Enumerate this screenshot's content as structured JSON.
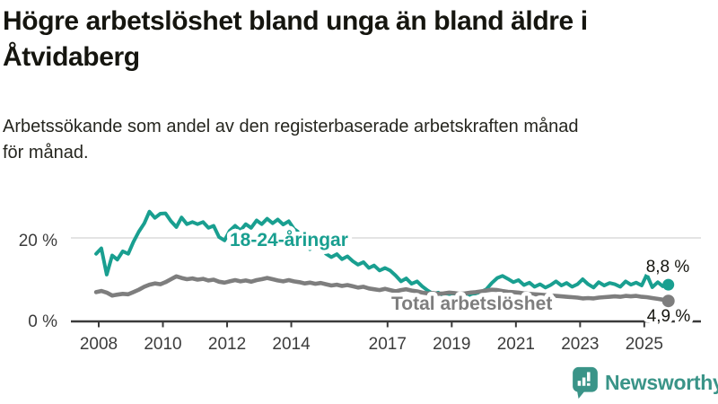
{
  "header": {
    "title_lines": [
      "Högre arbetslöshet bland unga än bland äldre i",
      "Åtvidaberg"
    ],
    "subtitle_lines": [
      "Arbetssökande som andel av den registerbaserade arbetskraften månad",
      "för månad."
    ]
  },
  "chart_data": {
    "type": "line",
    "title": "Högre arbetslöshet bland unga än bland äldre i Åtvidaberg",
    "subtitle": "Arbetssökande som andel av den registerbaserade arbetskraften månad för månad.",
    "unit": "%",
    "grid": "horizontal only at 20 %",
    "legend_position": "inline labels on lines",
    "x_axis": {
      "ticks": [
        2008,
        2010,
        2012,
        2014,
        2017,
        2019,
        2021,
        2023,
        2025
      ],
      "range": [
        2007.9,
        2025.9
      ]
    },
    "y_axis": {
      "gridlines": [
        20
      ],
      "ticks": [
        {
          "value": 20,
          "label": "20 %"
        },
        {
          "value": 0,
          "label": "0 %"
        }
      ],
      "range": [
        0,
        28
      ]
    },
    "series": [
      {
        "name": "18-24-åringar",
        "color": "#199f90",
        "end_label": "8,8 %",
        "end_value": 8.8,
        "points": [
          [
            2007.92,
            16.2
          ],
          [
            2008.08,
            17.5
          ],
          [
            2008.25,
            11.2
          ],
          [
            2008.42,
            15.8
          ],
          [
            2008.58,
            14.8
          ],
          [
            2008.75,
            16.8
          ],
          [
            2008.92,
            16.2
          ],
          [
            2009.08,
            19.0
          ],
          [
            2009.25,
            21.5
          ],
          [
            2009.42,
            23.5
          ],
          [
            2009.58,
            26.3
          ],
          [
            2009.75,
            24.8
          ],
          [
            2009.92,
            25.8
          ],
          [
            2010.08,
            25.9
          ],
          [
            2010.25,
            24.0
          ],
          [
            2010.42,
            22.6
          ],
          [
            2010.58,
            24.9
          ],
          [
            2010.75,
            23.3
          ],
          [
            2010.92,
            23.8
          ],
          [
            2011.08,
            23.3
          ],
          [
            2011.25,
            23.8
          ],
          [
            2011.42,
            22.4
          ],
          [
            2011.58,
            22.9
          ],
          [
            2011.75,
            20.2
          ],
          [
            2011.92,
            19.4
          ],
          [
            2012.08,
            21.7
          ],
          [
            2012.25,
            22.9
          ],
          [
            2012.42,
            21.8
          ],
          [
            2012.58,
            23.3
          ],
          [
            2012.75,
            22.4
          ],
          [
            2012.92,
            24.2
          ],
          [
            2013.08,
            23.3
          ],
          [
            2013.25,
            24.6
          ],
          [
            2013.42,
            23.5
          ],
          [
            2013.58,
            24.4
          ],
          [
            2013.75,
            23.2
          ],
          [
            2013.92,
            24.0
          ],
          [
            2014.08,
            22.2
          ],
          [
            2014.25,
            21.2
          ],
          [
            2014.42,
            19.8
          ],
          [
            2014.58,
            17.3
          ],
          [
            2014.75,
            18.9
          ],
          [
            2014.92,
            18.3
          ],
          [
            2015.08,
            16.2
          ],
          [
            2015.25,
            15.4
          ],
          [
            2015.42,
            16.1
          ],
          [
            2015.58,
            14.9
          ],
          [
            2015.75,
            15.6
          ],
          [
            2015.92,
            14.4
          ],
          [
            2016.08,
            13.6
          ],
          [
            2016.25,
            14.2
          ],
          [
            2016.42,
            12.8
          ],
          [
            2016.58,
            13.4
          ],
          [
            2016.75,
            12.2
          ],
          [
            2016.92,
            12.8
          ],
          [
            2017.08,
            12.2
          ],
          [
            2017.25,
            11.0
          ],
          [
            2017.42,
            9.6
          ],
          [
            2017.58,
            10.3
          ],
          [
            2017.75,
            9.0
          ],
          [
            2017.92,
            9.6
          ],
          [
            2018.08,
            8.4
          ],
          [
            2018.25,
            7.4
          ],
          [
            2018.42,
            6.6
          ],
          [
            2018.58,
            6.9
          ],
          [
            2018.75,
            6.2
          ],
          [
            2018.92,
            6.6
          ],
          [
            2019.08,
            6.1
          ],
          [
            2019.25,
            6.4
          ],
          [
            2019.42,
            5.9
          ],
          [
            2019.58,
            6.3
          ],
          [
            2019.75,
            6.7
          ],
          [
            2019.92,
            7.1
          ],
          [
            2020.08,
            7.7
          ],
          [
            2020.25,
            9.2
          ],
          [
            2020.42,
            10.4
          ],
          [
            2020.58,
            10.9
          ],
          [
            2020.75,
            10.2
          ],
          [
            2020.92,
            9.4
          ],
          [
            2021.08,
            9.9
          ],
          [
            2021.25,
            8.7
          ],
          [
            2021.42,
            9.3
          ],
          [
            2021.58,
            8.3
          ],
          [
            2021.75,
            8.9
          ],
          [
            2021.92,
            8.1
          ],
          [
            2022.08,
            8.7
          ],
          [
            2022.25,
            9.6
          ],
          [
            2022.42,
            8.6
          ],
          [
            2022.58,
            9.2
          ],
          [
            2022.75,
            8.3
          ],
          [
            2022.92,
            8.9
          ],
          [
            2023.08,
            10.1
          ],
          [
            2023.25,
            8.9
          ],
          [
            2023.42,
            8.1
          ],
          [
            2023.58,
            9.4
          ],
          [
            2023.75,
            8.6
          ],
          [
            2023.92,
            9.2
          ],
          [
            2024.08,
            8.9
          ],
          [
            2024.25,
            8.3
          ],
          [
            2024.42,
            9.6
          ],
          [
            2024.58,
            8.8
          ],
          [
            2024.75,
            9.3
          ],
          [
            2024.92,
            8.6
          ],
          [
            2025.08,
            11.2
          ],
          [
            2025.25,
            8.2
          ],
          [
            2025.42,
            9.4
          ],
          [
            2025.58,
            8.4
          ],
          [
            2025.75,
            8.8
          ]
        ]
      },
      {
        "name": "Total arbetslöshet",
        "color": "#7e7e7e",
        "end_label": "4,9 %",
        "end_value": 4.9,
        "points": [
          [
            2007.92,
            7.0
          ],
          [
            2008.08,
            7.3
          ],
          [
            2008.25,
            6.9
          ],
          [
            2008.42,
            6.2
          ],
          [
            2008.58,
            6.4
          ],
          [
            2008.75,
            6.6
          ],
          [
            2008.92,
            6.5
          ],
          [
            2009.08,
            7.0
          ],
          [
            2009.25,
            7.6
          ],
          [
            2009.42,
            8.3
          ],
          [
            2009.58,
            8.8
          ],
          [
            2009.75,
            9.1
          ],
          [
            2009.92,
            8.9
          ],
          [
            2010.08,
            9.4
          ],
          [
            2010.25,
            10.1
          ],
          [
            2010.42,
            10.8
          ],
          [
            2010.58,
            10.4
          ],
          [
            2010.75,
            10.1
          ],
          [
            2010.92,
            10.3
          ],
          [
            2011.08,
            10.0
          ],
          [
            2011.25,
            10.2
          ],
          [
            2011.42,
            9.8
          ],
          [
            2011.58,
            10.0
          ],
          [
            2011.75,
            9.5
          ],
          [
            2011.92,
            9.3
          ],
          [
            2012.08,
            9.6
          ],
          [
            2012.25,
            9.9
          ],
          [
            2012.42,
            9.6
          ],
          [
            2012.58,
            9.8
          ],
          [
            2012.75,
            9.5
          ],
          [
            2012.92,
            9.9
          ],
          [
            2013.08,
            10.1
          ],
          [
            2013.25,
            10.4
          ],
          [
            2013.42,
            10.1
          ],
          [
            2013.58,
            9.8
          ],
          [
            2013.75,
            9.6
          ],
          [
            2013.92,
            9.9
          ],
          [
            2014.08,
            9.6
          ],
          [
            2014.25,
            9.4
          ],
          [
            2014.42,
            9.1
          ],
          [
            2014.58,
            9.3
          ],
          [
            2014.75,
            9.0
          ],
          [
            2014.92,
            9.2
          ],
          [
            2015.08,
            8.9
          ],
          [
            2015.25,
            8.6
          ],
          [
            2015.42,
            8.8
          ],
          [
            2015.58,
            8.5
          ],
          [
            2015.75,
            8.7
          ],
          [
            2015.92,
            8.4
          ],
          [
            2016.08,
            8.1
          ],
          [
            2016.25,
            8.3
          ],
          [
            2016.42,
            7.9
          ],
          [
            2016.58,
            7.7
          ],
          [
            2016.75,
            7.5
          ],
          [
            2016.92,
            7.8
          ],
          [
            2017.08,
            7.5
          ],
          [
            2017.25,
            7.2
          ],
          [
            2017.42,
            7.5
          ],
          [
            2017.58,
            7.7
          ],
          [
            2017.75,
            7.4
          ],
          [
            2017.92,
            7.2
          ],
          [
            2018.08,
            6.9
          ],
          [
            2018.25,
            6.7
          ],
          [
            2018.42,
            6.8
          ],
          [
            2018.58,
            6.6
          ],
          [
            2018.75,
            6.7
          ],
          [
            2018.92,
            6.9
          ],
          [
            2019.08,
            6.8
          ],
          [
            2019.25,
            6.6
          ],
          [
            2019.42,
            6.7
          ],
          [
            2019.58,
            6.9
          ],
          [
            2019.75,
            7.0
          ],
          [
            2019.92,
            7.2
          ],
          [
            2020.08,
            7.4
          ],
          [
            2020.25,
            7.6
          ],
          [
            2020.42,
            7.5
          ],
          [
            2020.58,
            7.3
          ],
          [
            2020.75,
            7.1
          ],
          [
            2020.92,
            7.0
          ],
          [
            2021.08,
            6.9
          ],
          [
            2021.25,
            6.7
          ],
          [
            2021.42,
            6.6
          ],
          [
            2021.58,
            6.5
          ],
          [
            2021.75,
            6.4
          ],
          [
            2021.92,
            6.3
          ],
          [
            2022.08,
            6.2
          ],
          [
            2022.25,
            6.1
          ],
          [
            2022.42,
            6.0
          ],
          [
            2022.58,
            5.9
          ],
          [
            2022.75,
            5.8
          ],
          [
            2022.92,
            5.7
          ],
          [
            2023.08,
            5.5
          ],
          [
            2023.25,
            5.6
          ],
          [
            2023.42,
            5.5
          ],
          [
            2023.58,
            5.7
          ],
          [
            2023.75,
            5.8
          ],
          [
            2023.92,
            5.9
          ],
          [
            2024.08,
            6.0
          ],
          [
            2024.25,
            5.9
          ],
          [
            2024.42,
            6.1
          ],
          [
            2024.58,
            6.0
          ],
          [
            2024.75,
            6.1
          ],
          [
            2024.92,
            5.9
          ],
          [
            2025.08,
            5.8
          ],
          [
            2025.25,
            5.6
          ],
          [
            2025.42,
            5.4
          ],
          [
            2025.58,
            5.2
          ],
          [
            2025.75,
            4.9
          ]
        ]
      }
    ]
  },
  "footer": {
    "brand": "Newsworthy",
    "brand_color": "#3a9488",
    "brand_icon": "bar-chart-speech-bubble-icon"
  }
}
